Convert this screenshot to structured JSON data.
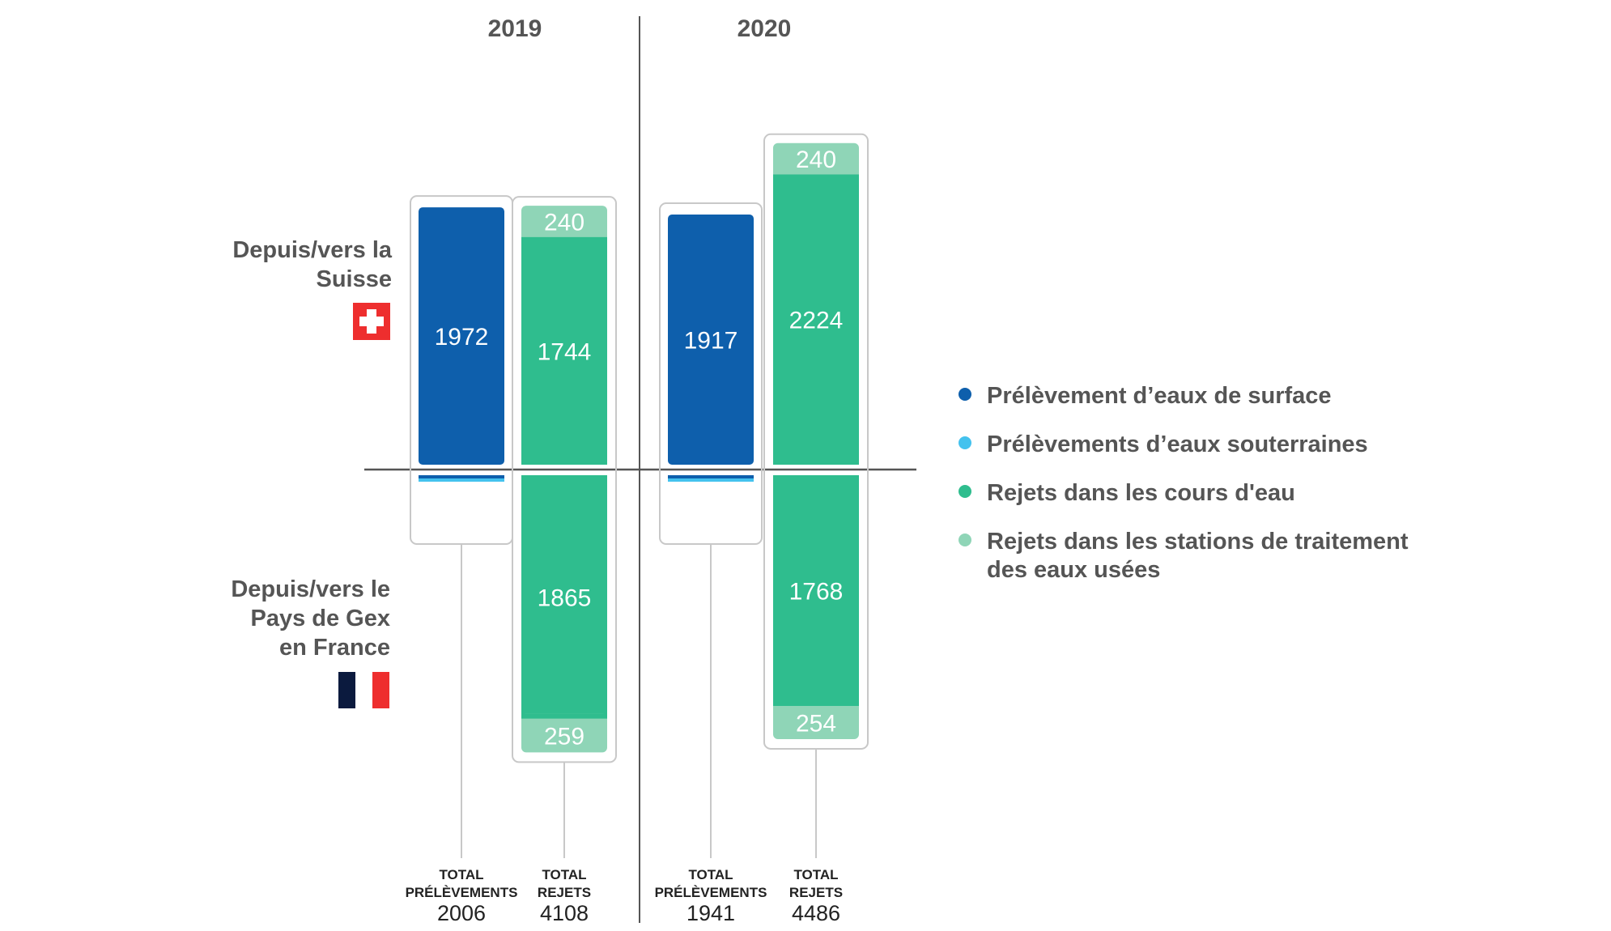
{
  "colors": {
    "surface": "#0e5fac",
    "groundwater": "#44c2ee",
    "river": "#2fbd8e",
    "treatment": "#8fd5b7",
    "axis": "#555555",
    "frame": "#c8c8c8",
    "swiss_red": "#ee2e2e",
    "french_blue": "#0b1a3e",
    "french_red": "#ee2e2e"
  },
  "regions": {
    "top": [
      "Depuis/vers la",
      "Suisse"
    ],
    "bottom": [
      "Depuis/vers le",
      "Pays de Gex",
      "en France"
    ]
  },
  "legend": [
    {
      "label": [
        "Prélèvement d’eaux de surface"
      ],
      "color": "#0e5fac"
    },
    {
      "label": [
        "Prélèvements d’eaux souterraines"
      ],
      "color": "#44c2ee"
    },
    {
      "label": [
        "Rejets dans les cours d'eau"
      ],
      "color": "#2fbd8e"
    },
    {
      "label": [
        "Rejets dans les stations de traitement",
        "des eaux usées"
      ],
      "color": "#8fd5b7"
    }
  ],
  "chart_data": {
    "type": "bar",
    "years": [
      {
        "year": "2019",
        "withdrawals": {
          "label": [
            "TOTAL",
            "PRÉLÈVEMENTS"
          ],
          "total": "2006",
          "switzerland": {
            "surface": 1972
          },
          "france": {
            "surface": 12.8,
            "groundwater": 20.9
          }
        },
        "discharges": {
          "label": [
            "TOTAL",
            "REJETS"
          ],
          "total": "4108",
          "switzerland": {
            "river": 1744,
            "treatment": 240
          },
          "france": {
            "river": 1865,
            "treatment": 259
          }
        }
      },
      {
        "year": "2020",
        "withdrawals": {
          "label": [
            "TOTAL",
            "PRÉLÈVEMENTS"
          ],
          "total": "1941",
          "switzerland": {
            "surface": 1917
          },
          "france": {
            "surface": 8.9,
            "groundwater": 14.5
          }
        },
        "discharges": {
          "label": [
            "TOTAL",
            "REJETS"
          ],
          "total": "4486",
          "switzerland": {
            "river": 2224,
            "treatment": 240
          },
          "france": {
            "river": 1768,
            "treatment": 254
          }
        }
      }
    ]
  }
}
